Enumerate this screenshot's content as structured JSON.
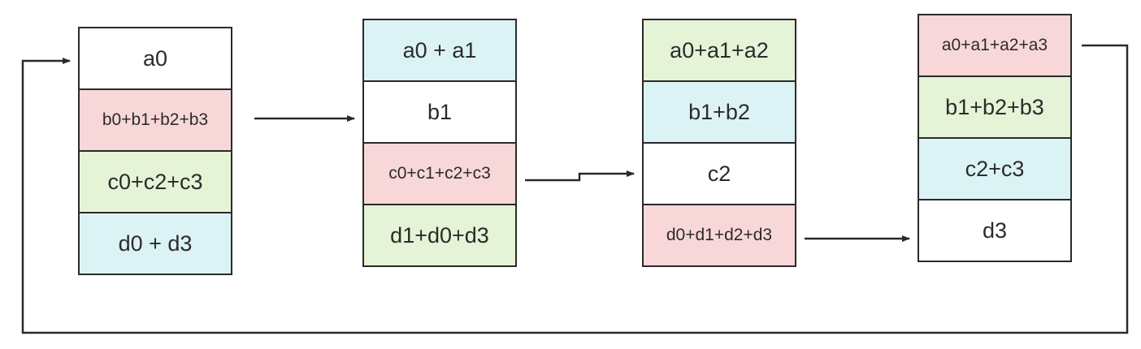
{
  "stacks": [
    {
      "cells": [
        {
          "label": "a0",
          "color": "#ffffff"
        },
        {
          "label": "b0+b1+b2+b3",
          "color": "#f8d7d9"
        },
        {
          "label": "c0+c2+c3",
          "color": "#e5f3d7"
        },
        {
          "label": "d0 + d3",
          "color": "#dbf3f5"
        }
      ]
    },
    {
      "cells": [
        {
          "label": "a0 + a1",
          "color": "#dbf3f5"
        },
        {
          "label": "b1",
          "color": "#ffffff"
        },
        {
          "label": "c0+c1+c2+c3",
          "color": "#f8d7d9"
        },
        {
          "label": "d1+d0+d3",
          "color": "#e5f3d7"
        }
      ]
    },
    {
      "cells": [
        {
          "label": "a0+a1+a2",
          "color": "#e5f3d7"
        },
        {
          "label": "b1+b2",
          "color": "#dbf3f5"
        },
        {
          "label": "c2",
          "color": "#ffffff"
        },
        {
          "label": "d0+d1+d2+d3",
          "color": "#f8d7d9"
        }
      ]
    },
    {
      "cells": [
        {
          "label": "a0+a1+a2+a3",
          "color": "#f8d7d9"
        },
        {
          "label": "b1+b2+b3",
          "color": "#e5f3d7"
        },
        {
          "label": "c2+c3",
          "color": "#dbf3f5"
        },
        {
          "label": "d3",
          "color": "#ffffff"
        }
      ]
    }
  ],
  "colors": {
    "line": "#2a2a2a",
    "white": "#ffffff",
    "red": "#f8d7d9",
    "green": "#e5f3d7",
    "blue": "#dbf3f5"
  }
}
